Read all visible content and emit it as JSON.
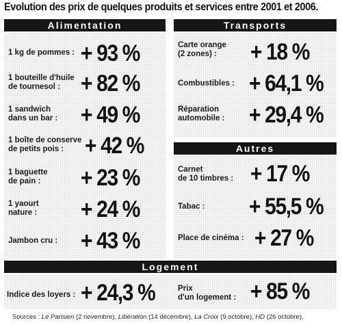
{
  "title": "Evolution des prix de quelques produits et services entre 2001 et 2006.",
  "sections": {
    "alimentation": {
      "heading": "Alimentation",
      "items": [
        {
          "label_1": "1 kg de pommes :",
          "label_2": "",
          "value": "+ 93 %"
        },
        {
          "label_1": "1 bouteille d'huile",
          "label_2": "de tournesol :",
          "value": "+ 82 %"
        },
        {
          "label_1": "1 sandwich",
          "label_2": "dans un bar :",
          "value": "+ 49 %"
        },
        {
          "label_1": "1 boîte de conserve",
          "label_2": "de petits pois :",
          "value": "+ 42 %"
        },
        {
          "label_1": "1 baguette",
          "label_2": "de pain :",
          "value": "+ 23 %"
        },
        {
          "label_1": "1 yaourt",
          "label_2": "nature :",
          "value": "+ 24 %"
        },
        {
          "label_1": "Jambon cru :",
          "label_2": "",
          "value": "+ 43 %"
        }
      ]
    },
    "transports": {
      "heading": "Transports",
      "items": [
        {
          "label_1": "Carte orange",
          "label_2": "(2 zones) :",
          "value": "+ 18 %"
        },
        {
          "label_1": "Combustibles :",
          "label_2": "",
          "value": "+ 64,1 %"
        },
        {
          "label_1": "Réparation",
          "label_2": "automobile :",
          "value": "+ 29,4 %"
        }
      ]
    },
    "autres": {
      "heading": "Autres",
      "items": [
        {
          "label_1": "Carnet",
          "label_2": "de 10 timbres :",
          "value": "+ 17 %"
        },
        {
          "label_1": "Tabac :",
          "label_2": "",
          "value": "+ 55,5 %"
        },
        {
          "label_1": "Place de cinéma :",
          "label_2": "",
          "value": "+ 27 %"
        }
      ]
    },
    "logement": {
      "heading": "Logement",
      "items": [
        {
          "label_1": "Indice des loyers :",
          "label_2": "",
          "value": "+ 24,3 %"
        },
        {
          "label_1": "Prix",
          "label_2": "d'un logement :",
          "value": "+ 85 %"
        }
      ]
    }
  },
  "sources": {
    "prefix": "Sources : ",
    "s1_name": "Le Parisien",
    "s1_date": " (2 novembre), ",
    "s2_name": "Libération",
    "s2_date": " (14 décembre), ",
    "s3_name": "La Croix",
    "s3_date": " (9 octobre), ",
    "s4_name": "HD",
    "s4_date": " (26 octobre)."
  }
}
